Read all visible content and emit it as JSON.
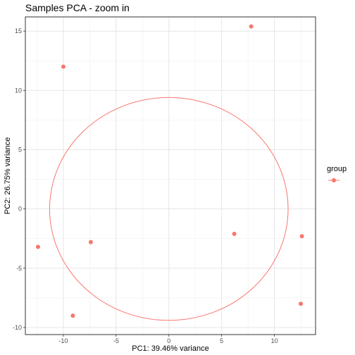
{
  "chart_data": {
    "type": "scatter",
    "title": "Samples PCA - zoom in",
    "xlabel": "PC1: 39.46% variance",
    "ylabel": "PC2: 26.75% variance",
    "xlim": [
      -13.6,
      13.9
    ],
    "ylim": [
      -10.6,
      16.2
    ],
    "x_ticks": [
      -10,
      -5,
      0,
      5,
      10
    ],
    "y_ticks": [
      -10,
      -5,
      0,
      5,
      10,
      15
    ],
    "x_tick_labels": [
      "-10",
      "-5",
      "0",
      "5",
      "10"
    ],
    "y_tick_labels": [
      "-10",
      "-5",
      "0",
      "5",
      "10",
      "15"
    ],
    "grid": true,
    "color": "#F8766D",
    "legend": {
      "title": "group",
      "placement": "right"
    },
    "points": [
      {
        "x": -10.0,
        "y": 12.0
      },
      {
        "x": 7.8,
        "y": 15.4
      },
      {
        "x": -12.4,
        "y": -3.2
      },
      {
        "x": -7.4,
        "y": -2.8
      },
      {
        "x": -9.1,
        "y": -9.0
      },
      {
        "x": 6.2,
        "y": -2.1
      },
      {
        "x": 12.6,
        "y": -2.3
      },
      {
        "x": 12.5,
        "y": -8.0
      }
    ],
    "ellipse": {
      "center": [
        0,
        0
      ],
      "rx": 11.3,
      "ry": 9.4
    }
  }
}
